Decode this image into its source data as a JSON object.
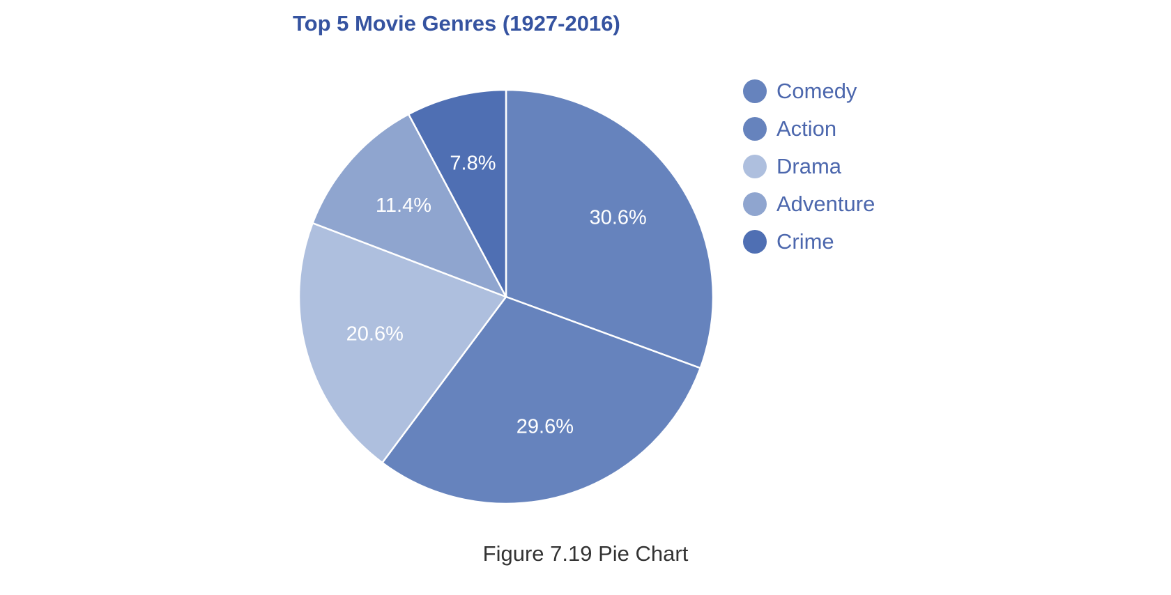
{
  "chart_data": {
    "type": "pie",
    "title": "Top 5 Movie Genres (1927-2016)",
    "slices": [
      {
        "name": "Comedy",
        "value": 30.6,
        "label": "30.6%",
        "color": "#6683bd"
      },
      {
        "name": "Action",
        "value": 29.6,
        "label": "29.6%",
        "color": "#6683bd"
      },
      {
        "name": "Drama",
        "value": 20.6,
        "label": "20.6%",
        "color": "#aebfde"
      },
      {
        "name": "Adventure",
        "value": 11.4,
        "label": "11.4%",
        "color": "#8fa5cf"
      },
      {
        "name": "Crime",
        "value": 7.8,
        "label": "7.8%",
        "color": "#4f6fb3"
      }
    ],
    "legend_position": "right",
    "start_angle": "top",
    "direction": "clockwise"
  },
  "caption": "Figure 7.19 Pie Chart"
}
